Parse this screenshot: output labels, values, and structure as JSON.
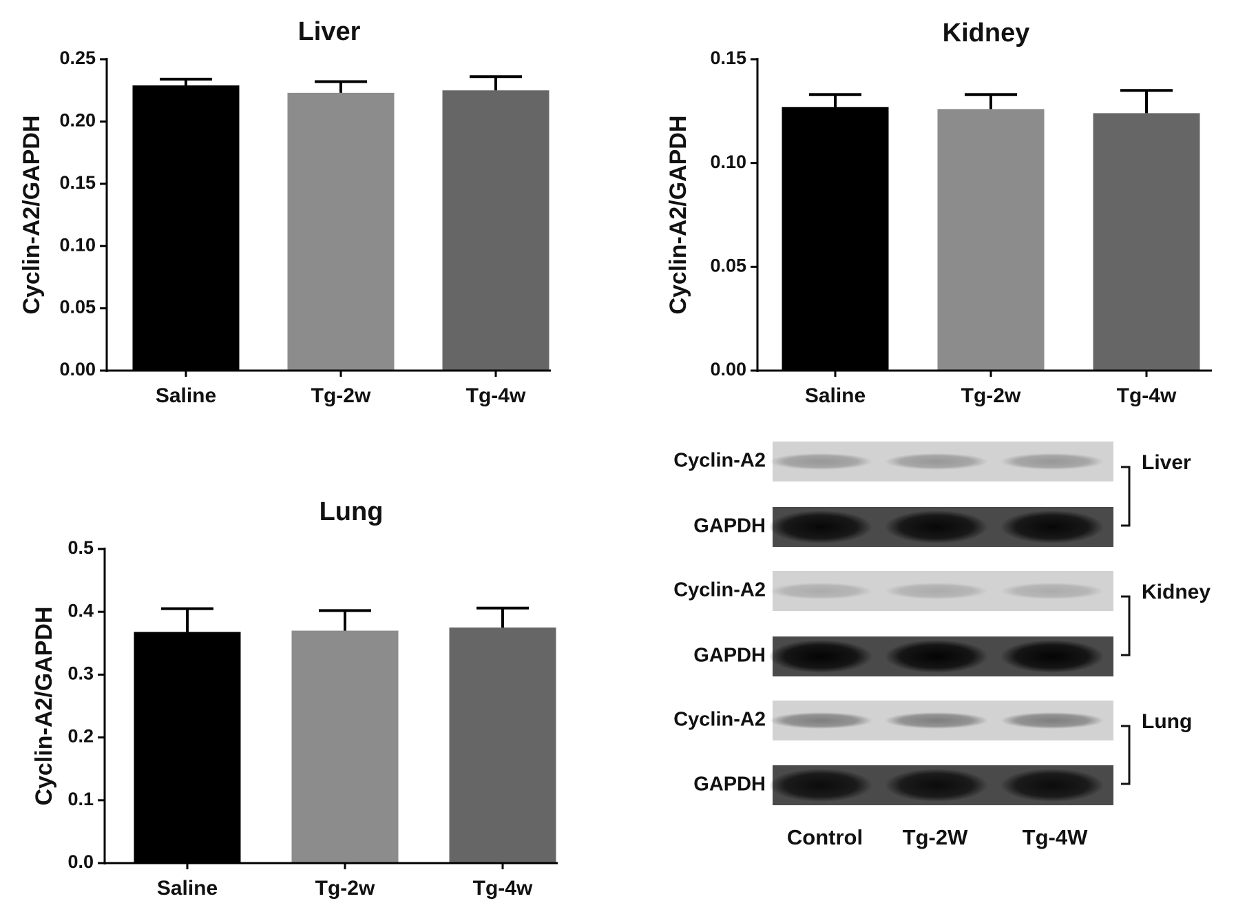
{
  "chart_data": [
    {
      "type": "bar",
      "title": "Liver",
      "ylabel": "Cyclin-A2/GAPDH",
      "categories": [
        "Saline",
        "Tg-2w",
        "Tg-4w"
      ],
      "values": [
        0.229,
        0.223,
        0.225
      ],
      "errors": [
        0.005,
        0.009,
        0.011
      ],
      "colors": [
        "#000000",
        "#8c8c8c",
        "#666666"
      ],
      "ylim": [
        0,
        0.25
      ],
      "yticks": [
        "0.00",
        "0.05",
        "0.10",
        "0.15",
        "0.20",
        "0.25"
      ]
    },
    {
      "type": "bar",
      "title": "Kidney",
      "ylabel": "Cyclin-A2/GAPDH",
      "categories": [
        "Saline",
        "Tg-2w",
        "Tg-4w"
      ],
      "values": [
        0.127,
        0.126,
        0.124
      ],
      "errors": [
        0.006,
        0.007,
        0.011
      ],
      "colors": [
        "#000000",
        "#8c8c8c",
        "#666666"
      ],
      "ylim": [
        0,
        0.15
      ],
      "yticks": [
        "0.00",
        "0.05",
        "0.10",
        "0.15"
      ]
    },
    {
      "type": "bar",
      "title": "Lung",
      "ylabel": "Cyclin-A2/GAPDH",
      "categories": [
        "Saline",
        "Tg-2w",
        "Tg-4w"
      ],
      "values": [
        0.368,
        0.37,
        0.375
      ],
      "errors": [
        0.037,
        0.032,
        0.031
      ],
      "colors": [
        "#000000",
        "#8c8c8c",
        "#666666"
      ],
      "ylim": [
        0,
        0.5
      ],
      "yticks": [
        "0.0",
        "0.1",
        "0.2",
        "0.3",
        "0.4",
        "0.5"
      ]
    }
  ],
  "blot": {
    "lanes": [
      "Control",
      "Tg-2W",
      "Tg-4W"
    ],
    "groups": [
      {
        "tissue": "Liver",
        "rows": [
          {
            "label": "Cyclin-A2",
            "intensity": 0.28
          },
          {
            "label": "GAPDH",
            "intensity": 0.9
          }
        ]
      },
      {
        "tissue": "Kidney",
        "rows": [
          {
            "label": "Cyclin-A2",
            "intensity": 0.18
          },
          {
            "label": "GAPDH",
            "intensity": 0.95
          }
        ]
      },
      {
        "tissue": "Lung",
        "rows": [
          {
            "label": "Cyclin-A2",
            "intensity": 0.4
          },
          {
            "label": "GAPDH",
            "intensity": 0.85
          }
        ]
      }
    ]
  }
}
